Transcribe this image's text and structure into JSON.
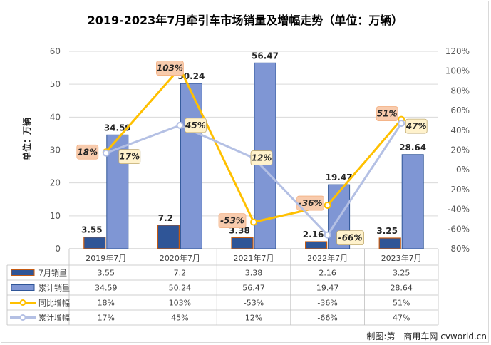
{
  "chart_data": {
    "type": "bar",
    "title": "2019-2023年7月牵引车市场销量及增幅走势（单位：万辆）",
    "ylabel": "单位：万辆",
    "ylim": [
      0,
      60
    ],
    "y_ticks": [
      "0",
      "10",
      "20",
      "30",
      "40",
      "50",
      "60"
    ],
    "y2lim": [
      -80,
      120
    ],
    "y2_ticks": [
      "-80%",
      "-60%",
      "-40%",
      "-20%",
      "0%",
      "20%",
      "40%",
      "60%",
      "80%",
      "100%",
      "120%"
    ],
    "categories": [
      "2019年7月",
      "2020年7月",
      "2021年7月",
      "2022年7月",
      "2023年7月"
    ],
    "series": [
      {
        "name": "7月销量",
        "kind": "bar",
        "color": "#2f5597",
        "values": [
          3.55,
          7.2,
          3.38,
          2.16,
          3.25
        ],
        "labels": [
          "3.55",
          "7.2",
          "3.38",
          "2.16",
          "3.25"
        ]
      },
      {
        "name": "累计销量",
        "kind": "bar",
        "color": "#7f96d4",
        "values": [
          34.59,
          50.24,
          56.47,
          19.47,
          28.64
        ],
        "labels": [
          "34.59",
          "50.24",
          "56.47",
          "19.47",
          "28.64"
        ]
      },
      {
        "name": "同比增幅",
        "kind": "line",
        "axis": "right",
        "color": "#ffc000",
        "values": [
          18,
          103,
          -53,
          -36,
          51
        ],
        "labels": [
          "18%",
          "103%",
          "-53%",
          "-36%",
          "51%"
        ]
      },
      {
        "name": "累计增幅",
        "kind": "line",
        "axis": "right",
        "color": "#b4c0e4",
        "values": [
          17,
          45,
          12,
          -66,
          47
        ],
        "labels": [
          "17%",
          "45%",
          "12%",
          "-66%",
          "47%"
        ]
      }
    ],
    "legend": "data-table"
  },
  "credit": "制图:第一商用车网 cvworld.cn"
}
